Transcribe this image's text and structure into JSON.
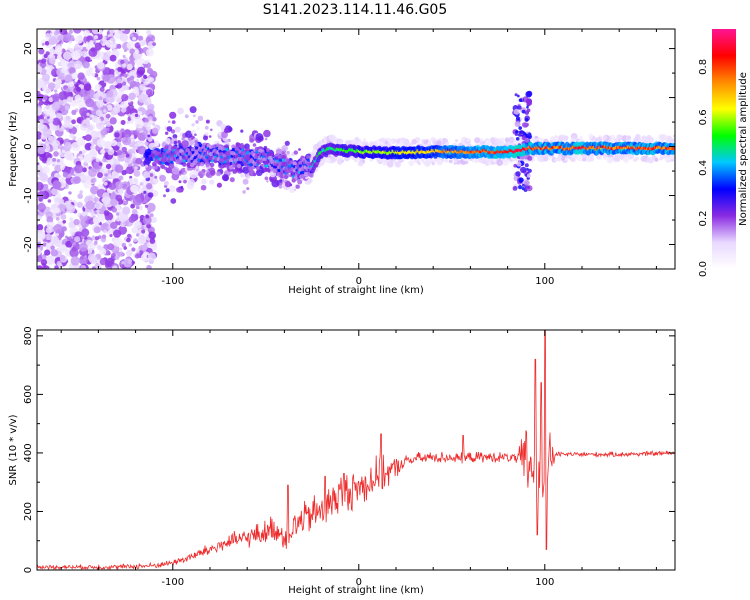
{
  "title": "S141.2023.114.11.46.G05",
  "chart_data": [
    {
      "type": "heatmap",
      "xlabel": "Height of straight line (km)",
      "ylabel": "Frequency (Hz)",
      "xlim": [
        -173,
        170
      ],
      "ylim": [
        -25,
        24
      ],
      "x_ticks": [
        -100,
        0,
        100
      ],
      "y_ticks": [
        -20,
        -10,
        0,
        10,
        20
      ],
      "grid": false,
      "colorbar": {
        "label": "Normalized spectral amplitude",
        "range": [
          0,
          0.95
        ],
        "ticks": [
          0.0,
          0.2,
          0.4,
          0.6,
          0.8
        ],
        "colors": [
          "#ffffff",
          "#e8d8ff",
          "#8a2be2",
          "#0000ff",
          "#00c8ff",
          "#00ff00",
          "#ffff00",
          "#ff8c00",
          "#ff0000",
          "#ff1493"
        ]
      },
      "ridge": [
        {
          "x": -110,
          "f": -2.0
        },
        {
          "x": -90,
          "f": -1.5
        },
        {
          "x": -70,
          "f": -2.0
        },
        {
          "x": -50,
          "f": -2.5
        },
        {
          "x": -35,
          "f": -5.0
        },
        {
          "x": -25,
          "f": -4.0
        },
        {
          "x": -20,
          "f": -1.0
        },
        {
          "x": -15,
          "f": -0.5
        },
        {
          "x": 0,
          "f": -1.0
        },
        {
          "x": 20,
          "f": -1.2
        },
        {
          "x": 40,
          "f": -1.0
        },
        {
          "x": 60,
          "f": -1.0
        },
        {
          "x": 85,
          "f": -1.0
        },
        {
          "x": 90,
          "f": -0.3
        },
        {
          "x": 170,
          "f": -0.3
        }
      ]
    },
    {
      "type": "line",
      "xlabel": "Height of straight line (km)",
      "ylabel": "SNR (10 * v/v)",
      "xlim": [
        -173,
        170
      ],
      "ylim": [
        0,
        820
      ],
      "x_ticks": [
        -100,
        0,
        100
      ],
      "y_ticks": [
        0,
        200,
        400,
        600,
        800
      ],
      "grid": false,
      "series": [
        {
          "color": "#ee2a2a",
          "points": [
            [
              -173,
              10
            ],
            [
              -150,
              10
            ],
            [
              -130,
              10
            ],
            [
              -110,
              15
            ],
            [
              -100,
              25
            ],
            [
              -90,
              45
            ],
            [
              -80,
              70
            ],
            [
              -70,
              95
            ],
            [
              -60,
              110
            ],
            [
              -50,
              130
            ],
            [
              -45,
              145
            ],
            [
              -40,
              110
            ],
            [
              -35,
              150
            ],
            [
              -30,
              170
            ],
            [
              -25,
              190
            ],
            [
              -20,
              200
            ],
            [
              -15,
              230
            ],
            [
              -10,
              260
            ],
            [
              -5,
              270
            ],
            [
              0,
              280
            ],
            [
              5,
              300
            ],
            [
              10,
              320
            ],
            [
              15,
              330
            ],
            [
              20,
              350
            ],
            [
              25,
              370
            ],
            [
              30,
              380
            ],
            [
              40,
              385
            ],
            [
              50,
              385
            ],
            [
              55,
              380
            ],
            [
              60,
              385
            ],
            [
              70,
              385
            ],
            [
              80,
              385
            ],
            [
              85,
              380
            ],
            [
              90,
              370
            ],
            [
              93,
              360
            ],
            [
              95,
              330
            ],
            [
              100,
              300
            ],
            [
              103,
              370
            ],
            [
              105,
              395
            ],
            [
              120,
              395
            ],
            [
              140,
              395
            ],
            [
              160,
              398
            ],
            [
              170,
              400
            ]
          ],
          "spikes": [
            {
              "x": 12,
              "y": 465
            },
            {
              "x": 56,
              "y": 460
            },
            {
              "x": 95,
              "y": 720
            },
            {
              "x": 98,
              "y": 640
            },
            {
              "x": 100,
              "y": 820
            },
            {
              "x": 101,
              "y": 70
            },
            {
              "x": 96,
              "y": 120
            },
            {
              "x": -8,
              "y": 330
            },
            {
              "x": -38,
              "y": 290
            },
            {
              "x": -18,
              "y": 320
            }
          ],
          "noise_amplitude": [
            {
              "x": -173,
              "a": 8
            },
            {
              "x": -100,
              "a": 12
            },
            {
              "x": -60,
              "a": 40
            },
            {
              "x": -20,
              "a": 80
            },
            {
              "x": 10,
              "a": 80
            },
            {
              "x": 25,
              "a": 25
            },
            {
              "x": 85,
              "a": 20
            },
            {
              "x": 90,
              "a": 150
            },
            {
              "x": 102,
              "a": 150
            },
            {
              "x": 106,
              "a": 10
            },
            {
              "x": 170,
              "a": 10
            }
          ]
        }
      ]
    }
  ]
}
